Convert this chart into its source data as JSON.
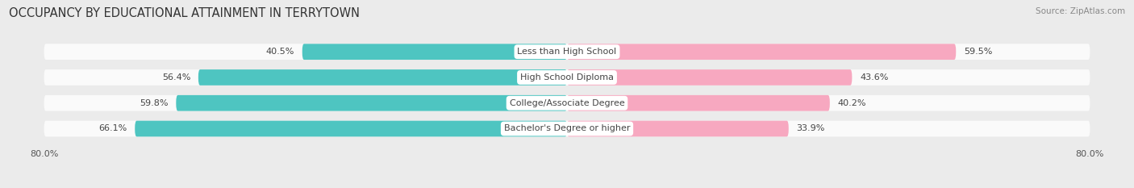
{
  "title": "OCCUPANCY BY EDUCATIONAL ATTAINMENT IN TERRYTOWN",
  "source": "Source: ZipAtlas.com",
  "categories": [
    "Less than High School",
    "High School Diploma",
    "College/Associate Degree",
    "Bachelor's Degree or higher"
  ],
  "owner_pct": [
    40.5,
    56.4,
    59.8,
    66.1
  ],
  "renter_pct": [
    59.5,
    43.6,
    40.2,
    33.9
  ],
  "owner_color": "#4EC5C1",
  "renter_color": "#F7A8C0",
  "bar_height": 0.62,
  "bar_gap": 0.08,
  "background_color": "#EBEBEB",
  "bar_bg_color": "#FAFAFA",
  "title_fontsize": 10.5,
  "source_fontsize": 7.5,
  "label_fontsize": 8,
  "value_fontsize": 8,
  "tick_fontsize": 8,
  "label_text_color": "#444444",
  "value_text_color": "#444444"
}
